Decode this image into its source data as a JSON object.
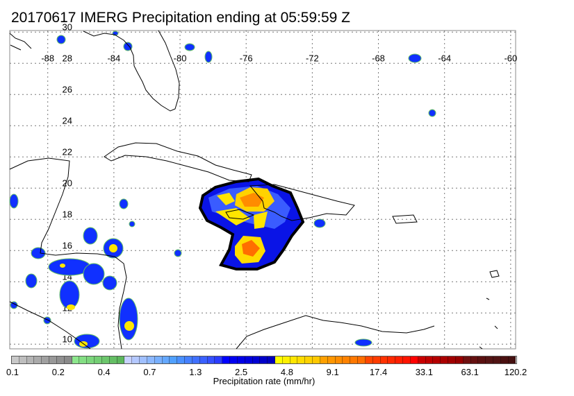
{
  "title": "20170617 IMERG Precipitation ending at 05:59:59 Z",
  "map": {
    "lon_labels": [
      "-88",
      "-84",
      "-80",
      "-76",
      "-72",
      "-68",
      "-64",
      "-60"
    ],
    "lon_values": [
      -88,
      -84,
      -80,
      -76,
      -72,
      -68,
      -64,
      -60
    ],
    "lat_labels": [
      "30",
      "28",
      "26",
      "24",
      "22",
      "20",
      "18",
      "16",
      "14",
      "12",
      "10"
    ],
    "lat_values": [
      30,
      28,
      26,
      24,
      22,
      20,
      18,
      16,
      14,
      12,
      10
    ],
    "extent": {
      "lon": [
        -90.3,
        -59.7
      ],
      "lat": [
        9.7,
        30.1
      ]
    }
  },
  "colorbar": {
    "title": "Precipitation rate (mm/hr)",
    "labels": [
      "0.1",
      "0.2",
      "0.4",
      "0.7",
      "1.3",
      "2.5",
      "4.8",
      "9.1",
      "17.4",
      "33.1",
      "63.1",
      "120.2"
    ],
    "colors": {
      "gray": [
        "#c8c8c8",
        "#bebebe",
        "#b4b4b4",
        "#aaaaaa",
        "#a0a0a0",
        "#989898",
        "#909090",
        "#8a8a8a"
      ],
      "green": [
        "#8ce68c",
        "#84de84",
        "#7cd67c",
        "#74ce74",
        "#6cc66c",
        "#64be64",
        "#5cb65c"
      ],
      "lightblue": [
        "#c8d2ff",
        "#b4c8ff",
        "#a0c0ff",
        "#8cb8ff",
        "#78b0ff",
        "#64a8ff",
        "#50a0ff",
        "#4a90ff",
        "#4580ff",
        "#4070ff",
        "#3a60ff",
        "#3550ff",
        "#2a3cff"
      ],
      "blue": [
        "#0000ff",
        "#0000f0",
        "#0000e6",
        "#0000dc",
        "#0000d2",
        "#0000c8",
        "#0000be"
      ],
      "yellow": [
        "#ffff00",
        "#fff000",
        "#ffe600",
        "#ffdc00",
        "#ffd200",
        "#ffc800"
      ],
      "orange": [
        "#ffa000",
        "#ff9600",
        "#ff8c00",
        "#ff8200",
        "#ff7800",
        "#ff6e00"
      ],
      "red": [
        "#ff4600",
        "#ff3c00",
        "#ff3200",
        "#ff2800",
        "#ff1e00",
        "#ff1400",
        "#ff0000"
      ],
      "darkred": [
        "#c80000",
        "#be0000",
        "#b40000",
        "#aa0000",
        "#a00000",
        "#960000"
      ],
      "brown": [
        "#6e1010",
        "#641010",
        "#5a1010",
        "#541414",
        "#501414",
        "#4a1010",
        "#441010"
      ]
    }
  }
}
